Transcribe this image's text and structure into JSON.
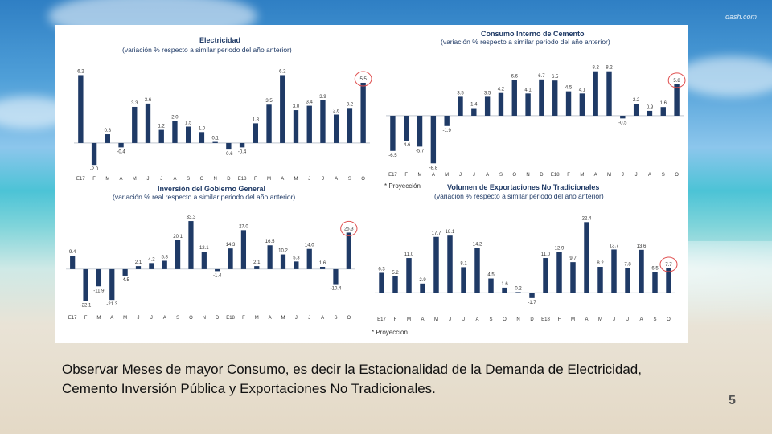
{
  "watermark": "dash.com",
  "caption": "Observar  Meses de mayor Consumo, es decir la Estacionalidad de la Demanda de Electricidad, Cemento  Inversión Pública y Exportaciones No Tradicionales.",
  "page_number": "5",
  "colors": {
    "bar": "#1f3a66",
    "highlight": "#e05050",
    "text": "#1f3a66"
  },
  "chart_data": [
    {
      "type": "bar",
      "title": "Electricidad",
      "subtitle": "(variación % respecto a similar periodo del año anterior)",
      "categories": [
        "E17",
        "F",
        "M",
        "A",
        "M",
        "J",
        "J",
        "A",
        "S",
        "O",
        "N",
        "D",
        "E18",
        "F",
        "M",
        "A",
        "M",
        "J",
        "J",
        "A",
        "S",
        "O"
      ],
      "values": [
        6.2,
        -2.0,
        0.8,
        -0.4,
        3.3,
        3.6,
        1.2,
        2.0,
        1.5,
        1.0,
        0.1,
        -0.6,
        -0.4,
        1.8,
        3.5,
        6.2,
        3.0,
        3.4,
        3.9,
        2.6,
        3.2,
        5.5
      ],
      "labels": [
        "6.2",
        "-2.0",
        "0.8",
        "-0.4",
        "3.3",
        "3.6",
        "1.2",
        "2.0",
        "1.5",
        "1.0",
        "0.1",
        "-0.6",
        "-0.4",
        "1.8",
        "3.5",
        "6.2",
        "3.0",
        "3.4",
        "3.9",
        "2.6",
        "3.2",
        "5.5"
      ],
      "tick_labels": [
        "E17",
        "F",
        "M",
        "A",
        "M",
        "J",
        "J",
        "A",
        "S",
        "O",
        "N",
        "D",
        "E18",
        "F",
        "M",
        "A",
        "M",
        "J",
        "J",
        "A",
        "S",
        "O"
      ],
      "highlight_index": 21,
      "ylim": [
        -2.5,
        6.6
      ],
      "footnote": ""
    },
    {
      "type": "bar",
      "title": "Consumo Interno de Cemento",
      "subtitle": "(variación % respecto a similar periodo del año anterior)",
      "categories": [
        "E17",
        "F",
        "M",
        "A",
        "M",
        "J",
        "J",
        "A",
        "S",
        "O",
        "N",
        "D",
        "E18",
        "F",
        "M",
        "A",
        "M",
        "J",
        "J",
        "A",
        "S",
        "O"
      ],
      "values": [
        -6.5,
        -4.6,
        -5.7,
        -8.8,
        -1.9,
        3.5,
        1.4,
        3.5,
        4.2,
        6.6,
        4.1,
        6.7,
        6.5,
        4.5,
        4.1,
        8.2,
        8.2,
        -0.5,
        2.2,
        0.9,
        1.6,
        5.8
      ],
      "labels": [
        "-6.5",
        "-4.6",
        "-5.7",
        "-8.8",
        "-1.9",
        "3.5",
        "1.4",
        "3.5",
        "4.2",
        "6.6",
        "4.1",
        "6.7",
        "6.5",
        "4.5",
        "4.1",
        "8.2",
        "8.2",
        "-0.5",
        "2.2",
        "0.9",
        "1.6",
        "5.8"
      ],
      "tick_labels": [
        "E17",
        "F",
        "M",
        "A",
        "M",
        "J",
        "J",
        "A",
        "S",
        "O",
        "N",
        "D",
        "E18",
        "F",
        "M",
        "A",
        "M",
        "J",
        "J",
        "A",
        "S",
        "O"
      ],
      "highlight_index": 21,
      "ylim": [
        -9.5,
        8.9
      ],
      "footnote": "* Proyección"
    },
    {
      "type": "bar",
      "title": "Inversión del Gobierno General",
      "subtitle": "(variación % real respecto a similar periodo del año anterior)",
      "categories": [
        "E17",
        "F",
        "M",
        "A",
        "M",
        "J",
        "J",
        "A",
        "S",
        "O",
        "N",
        "D",
        "E18",
        "F",
        "M",
        "A",
        "M",
        "J",
        "J",
        "A",
        "S",
        "O"
      ],
      "values": [
        9.4,
        -22.1,
        -11.9,
        -21.3,
        -4.5,
        2.1,
        4.2,
        5.8,
        20.1,
        33.3,
        12.1,
        -1.4,
        14.3,
        27.0,
        2.1,
        16.5,
        10.2,
        5.3,
        14.0,
        1.6,
        -10.4,
        25.3
      ],
      "labels": [
        "9.4",
        "-22.1",
        "-11.9",
        "-21.3",
        "-4.5",
        "2.1",
        "4.2",
        "5.8",
        "20.1",
        "33.3",
        "12.1",
        "-1.4",
        "14.3",
        "27.0",
        "2.1",
        "16.5",
        "10.2",
        "5.3",
        "14.0",
        "1.6",
        "-10.4",
        "25.3"
      ],
      "tick_labels": [
        "E17",
        "F",
        "M",
        "A",
        "M",
        "J",
        "J",
        "A",
        "S",
        "O",
        "N",
        "D",
        "E18",
        "F",
        "M",
        "A",
        "M",
        "J",
        "J",
        "A",
        "S",
        "O"
      ],
      "highlight_index": 21,
      "ylim": [
        -24,
        35
      ],
      "footnote": ""
    },
    {
      "type": "bar",
      "title": "Volumen de Exportaciones No Tradicionales",
      "subtitle": "(variación % respecto a similar periodo del año anterior)",
      "categories": [
        "E17",
        "F",
        "M",
        "A",
        "M",
        "J",
        "J",
        "A",
        "S",
        "O",
        "N",
        "D",
        "E18",
        "F",
        "M",
        "A",
        "M",
        "J",
        "J",
        "A",
        "S",
        "O"
      ],
      "values": [
        6.3,
        5.2,
        11.0,
        2.9,
        17.7,
        18.1,
        8.1,
        14.2,
        4.5,
        1.6,
        0.2,
        -1.7,
        11.0,
        12.9,
        9.7,
        22.4,
        8.2,
        13.7,
        7.8,
        13.6,
        6.5,
        7.7
      ],
      "labels": [
        "6.3",
        "5.2",
        "11.0",
        "2.9",
        "17.7",
        "18.1",
        "8.1",
        "14.2",
        "4.5",
        "1.6",
        "0.2",
        "-1.7",
        "11.0",
        "12.9",
        "9.7",
        "22.4",
        "8.2",
        "13.7",
        "7.8",
        "13.6",
        "6.5",
        "7.7"
      ],
      "tick_labels": [
        "E17",
        "F",
        "M",
        "A",
        "M",
        "J",
        "J",
        "A",
        "S",
        "O",
        "N",
        "D",
        "E18",
        "F",
        "M",
        "A",
        "M",
        "J",
        "J",
        "A",
        "S",
        "O"
      ],
      "highlight_index": 21,
      "ylim": [
        -2.5,
        23.5
      ],
      "footnote": "* Proyección"
    }
  ]
}
